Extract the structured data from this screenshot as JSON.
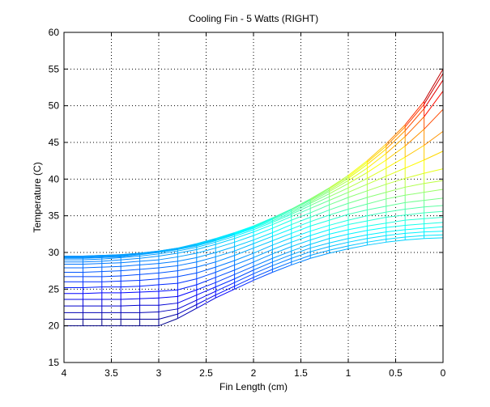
{
  "chart_data": {
    "type": "line",
    "title": "Cooling Fin - 5 Watts (RIGHT)",
    "xlabel": "Fin Length (cm)",
    "ylabel": "Temperature (C)",
    "xlim": [
      4,
      0
    ],
    "ylim": [
      15,
      60
    ],
    "x_reversed": true,
    "grid": true,
    "grid_style": "dotted",
    "colormap": "jet",
    "xticks": [
      4,
      3.5,
      3,
      2.5,
      2,
      1.5,
      1,
      0.5,
      0
    ],
    "xtick_labels": [
      "4",
      "3.5",
      "3",
      "2.5",
      "2",
      "1.5",
      "1",
      "0.5",
      "0"
    ],
    "yticks": [
      15,
      20,
      25,
      30,
      35,
      40,
      45,
      50,
      55,
      60
    ],
    "ytick_labels": [
      "15",
      "20",
      "25",
      "30",
      "35",
      "40",
      "45",
      "50",
      "55",
      "60"
    ],
    "x_nodes": [
      4,
      3.8,
      3.6,
      3.4,
      3.2,
      3,
      2.8,
      2.6,
      2.4,
      2.2,
      2,
      1.8,
      1.6,
      1.4,
      1.2,
      1,
      0.8,
      0.6,
      0.4,
      0.2,
      0
    ],
    "color_scale": "temperature",
    "series": [
      {
        "values": [
          20.0,
          20.0,
          20.0,
          20.0,
          20.0,
          20.0,
          21.0,
          22.4,
          23.8,
          25.0,
          26.2,
          27.3,
          28.3,
          29.2,
          29.9,
          30.5,
          31.0,
          31.4,
          31.7,
          31.9,
          32.0
        ]
      },
      {
        "values": [
          20.9,
          20.9,
          20.9,
          20.9,
          20.9,
          20.9,
          21.6,
          22.9,
          24.2,
          25.4,
          26.6,
          27.7,
          28.7,
          29.6,
          30.3,
          30.9,
          31.4,
          31.8,
          32.1,
          32.3,
          32.4
        ]
      },
      {
        "values": [
          21.8,
          21.8,
          21.8,
          21.8,
          21.8,
          21.9,
          22.3,
          23.5,
          24.7,
          25.9,
          27.1,
          28.2,
          29.2,
          30.1,
          30.8,
          31.4,
          31.9,
          32.3,
          32.6,
          32.8,
          32.9
        ]
      },
      {
        "values": [
          22.7,
          22.7,
          22.7,
          22.7,
          22.8,
          22.8,
          23.1,
          24.2,
          25.3,
          26.4,
          27.6,
          28.7,
          29.7,
          30.6,
          31.3,
          31.9,
          32.4,
          32.8,
          33.1,
          33.3,
          33.5
        ]
      },
      {
        "values": [
          23.6,
          23.6,
          23.6,
          23.6,
          23.7,
          23.8,
          24.0,
          24.9,
          25.9,
          27.0,
          28.1,
          29.2,
          30.2,
          31.1,
          31.9,
          32.5,
          33.0,
          33.4,
          33.7,
          33.9,
          34.1
        ]
      },
      {
        "values": [
          24.4,
          24.4,
          24.5,
          24.5,
          24.6,
          24.7,
          24.9,
          25.6,
          26.6,
          27.6,
          28.7,
          29.8,
          30.8,
          31.7,
          32.5,
          33.1,
          33.6,
          34.0,
          34.4,
          34.6,
          34.8
        ]
      },
      {
        "values": [
          25.2,
          25.2,
          25.3,
          25.3,
          25.4,
          25.6,
          25.8,
          26.4,
          27.3,
          28.3,
          29.3,
          30.4,
          31.4,
          32.3,
          33.1,
          33.8,
          34.3,
          34.8,
          35.1,
          35.4,
          35.6
        ]
      },
      {
        "values": [
          26.0,
          26.0,
          26.0,
          26.1,
          26.2,
          26.4,
          26.7,
          27.2,
          28.0,
          28.9,
          29.9,
          31.0,
          32.0,
          32.9,
          33.7,
          34.4,
          35.0,
          35.5,
          35.9,
          36.2,
          36.4
        ]
      },
      {
        "values": [
          26.7,
          26.7,
          26.7,
          26.8,
          27.0,
          27.2,
          27.5,
          28.0,
          28.7,
          29.6,
          30.6,
          31.6,
          32.6,
          33.6,
          34.4,
          35.2,
          35.8,
          36.3,
          36.8,
          37.1,
          37.4
        ]
      },
      {
        "values": [
          27.3,
          27.3,
          27.4,
          27.5,
          27.7,
          27.9,
          28.2,
          28.7,
          29.4,
          30.2,
          31.2,
          32.2,
          33.2,
          34.2,
          35.1,
          35.9,
          36.6,
          37.3,
          37.8,
          38.2,
          38.6
        ]
      },
      {
        "values": [
          27.9,
          27.9,
          28.0,
          28.1,
          28.3,
          28.5,
          28.8,
          29.3,
          30.0,
          30.8,
          31.7,
          32.7,
          33.8,
          34.8,
          35.8,
          36.7,
          37.5,
          38.2,
          38.9,
          39.4,
          39.8
        ]
      },
      {
        "values": [
          28.4,
          28.4,
          28.5,
          28.6,
          28.8,
          29.0,
          29.4,
          29.9,
          30.6,
          31.4,
          32.3,
          33.3,
          34.4,
          35.4,
          36.5,
          37.5,
          38.4,
          39.3,
          40.1,
          40.8,
          41.4
        ]
      },
      {
        "values": [
          28.7,
          28.7,
          28.8,
          29.0,
          29.2,
          29.5,
          29.9,
          30.4,
          31.1,
          31.9,
          32.8,
          33.8,
          34.9,
          36.0,
          37.1,
          38.2,
          39.3,
          40.4,
          41.5,
          42.6,
          43.8
        ]
      },
      {
        "values": [
          29.0,
          29.0,
          29.1,
          29.3,
          29.5,
          29.8,
          30.2,
          30.7,
          31.4,
          32.2,
          33.1,
          34.1,
          35.2,
          36.4,
          37.6,
          38.8,
          40.1,
          41.5,
          43.0,
          44.6,
          46.5
        ]
      },
      {
        "values": [
          29.2,
          29.2,
          29.3,
          29.4,
          29.7,
          30.0,
          30.4,
          30.9,
          31.6,
          32.4,
          33.3,
          34.3,
          35.4,
          36.7,
          38.0,
          39.4,
          40.9,
          42.6,
          44.5,
          46.8,
          49.5
        ]
      },
      {
        "values": [
          29.3,
          29.3,
          29.4,
          29.5,
          29.8,
          30.1,
          30.5,
          31.0,
          31.7,
          32.5,
          33.4,
          34.5,
          35.6,
          36.9,
          38.3,
          39.8,
          41.5,
          43.5,
          45.8,
          48.5,
          52.0
        ]
      },
      {
        "values": [
          29.4,
          29.4,
          29.5,
          29.6,
          29.8,
          30.1,
          30.5,
          31.1,
          31.8,
          32.6,
          33.5,
          34.6,
          35.8,
          37.1,
          38.5,
          40.1,
          42.0,
          44.1,
          46.6,
          49.6,
          53.5
        ]
      },
      {
        "values": [
          29.5,
          29.5,
          29.6,
          29.7,
          29.9,
          30.2,
          30.6,
          31.1,
          31.8,
          32.6,
          33.6,
          34.7,
          35.9,
          37.2,
          38.7,
          40.3,
          42.3,
          44.5,
          47.1,
          50.2,
          54.4
        ]
      },
      {
        "values": [
          29.5,
          29.5,
          29.6,
          29.7,
          29.9,
          30.2,
          30.6,
          31.2,
          31.9,
          32.7,
          33.6,
          34.7,
          35.9,
          37.3,
          38.8,
          40.5,
          42.5,
          44.8,
          47.4,
          50.6,
          55.0
        ]
      }
    ]
  }
}
